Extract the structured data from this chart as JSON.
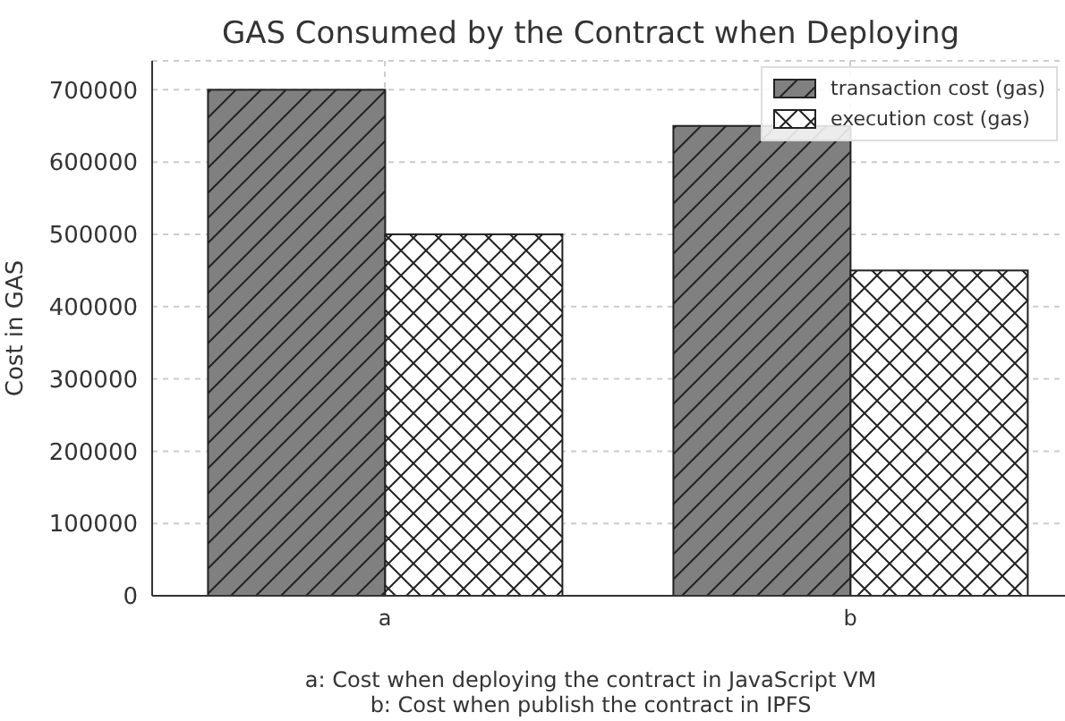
{
  "chart_data": {
    "type": "bar",
    "title": "GAS Consumed by the Contract when Deploying",
    "xlabel": "a: Cost when deploying the contract in JavaScript VM\nb: Cost when publish the contract in IPFS",
    "ylabel": "Cost in GAS",
    "categories": [
      "a",
      "b"
    ],
    "series": [
      {
        "name": "transaction cost (gas)",
        "color": "#808080",
        "values": [
          700000,
          650000
        ]
      },
      {
        "name": "execution cost (gas)",
        "color": "#ffffff",
        "values": [
          500000,
          450000
        ]
      }
    ],
    "ylim": [
      0,
      740000
    ],
    "yticks": [
      0,
      100000,
      200000,
      300000,
      400000,
      500000,
      600000,
      700000
    ],
    "grid": true,
    "legend": "top right"
  }
}
